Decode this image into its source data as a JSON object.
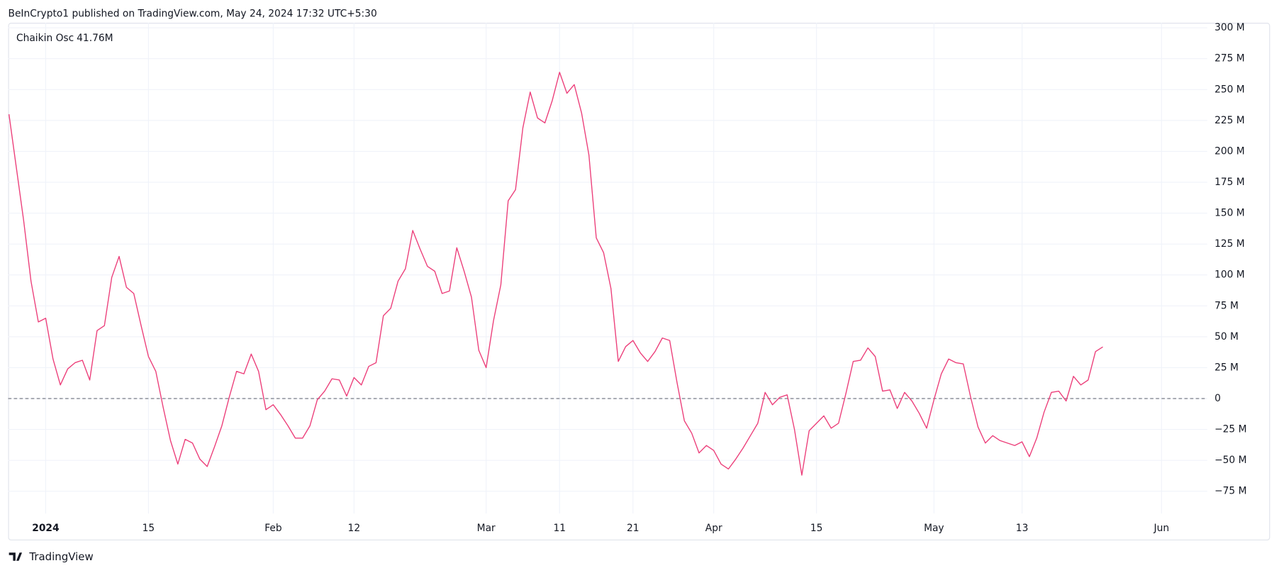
{
  "header": "BeInCrypto1 published on TradingView.com, May 24, 2024 17:32 UTC+5:30",
  "footer": "TradingView",
  "chart_data": {
    "type": "line",
    "series_label": "Chaikin Osc",
    "legend_value_label": "41.76M",
    "categories": [
      null,
      null,
      null,
      null,
      null,
      "2024",
      null,
      null,
      null,
      null,
      null,
      null,
      null,
      null,
      null,
      null,
      null,
      null,
      null,
      "15",
      null,
      null,
      null,
      null,
      null,
      null,
      null,
      null,
      null,
      null,
      null,
      null,
      null,
      null,
      null,
      null,
      "Feb",
      null,
      null,
      null,
      null,
      null,
      null,
      null,
      null,
      null,
      null,
      "12",
      null,
      null,
      null,
      null,
      null,
      null,
      null,
      null,
      null,
      null,
      null,
      null,
      null,
      null,
      null,
      null,
      null,
      "Mar",
      null,
      null,
      null,
      null,
      null,
      null,
      null,
      null,
      null,
      "11",
      null,
      null,
      null,
      null,
      null,
      null,
      null,
      null,
      null,
      "21",
      null,
      null,
      null,
      null,
      null,
      null,
      null,
      null,
      null,
      null,
      "Apr",
      null,
      null,
      null,
      null,
      null,
      null,
      null,
      null,
      null,
      null,
      null,
      null,
      null,
      "15",
      null,
      null,
      null,
      null,
      null,
      null,
      null,
      null,
      null,
      null,
      null,
      null,
      null,
      null,
      null,
      "May",
      null,
      null,
      null,
      null,
      null,
      null,
      null,
      null,
      null,
      null,
      null,
      "13",
      null,
      null,
      null,
      null,
      null,
      null,
      null,
      null,
      null,
      null,
      null,
      null,
      null,
      null,
      null,
      null,
      null,
      null,
      "Jun",
      null,
      null,
      null,
      null,
      null,
      null
    ],
    "series": [
      {
        "name": "Chaikin Osc",
        "color": "#ec3f7a",
        "values": [
          230,
          187,
          144,
          95,
          62,
          65,
          32,
          11,
          24,
          29,
          31,
          15,
          55,
          59,
          98,
          115,
          90,
          85,
          59,
          34,
          22,
          -7,
          -34,
          -53,
          -33,
          -36,
          -49,
          -55,
          -39,
          -22,
          1,
          22,
          20,
          36,
          22,
          -9,
          -5,
          -13,
          -22,
          -32,
          -32,
          -22,
          -1,
          6,
          16,
          15,
          2,
          17,
          11,
          26,
          29,
          67,
          73,
          95,
          105,
          136,
          121,
          107,
          103,
          85,
          87,
          122,
          103,
          82,
          39,
          25,
          63,
          92,
          160,
          169,
          219,
          248,
          227,
          223,
          241,
          264,
          247,
          254,
          231,
          197,
          130,
          118,
          89,
          30,
          42,
          47,
          37,
          30,
          38,
          49,
          47,
          13,
          -18,
          -28,
          -44,
          -38,
          -42,
          -53,
          -57,
          -49,
          -40,
          -30,
          -20,
          5,
          -5,
          1,
          3,
          -25,
          -62,
          -26,
          -20,
          -14,
          -24,
          -20,
          4,
          30,
          31,
          41,
          34,
          6,
          7,
          -8,
          5,
          -2,
          -12,
          -24,
          -1,
          20,
          32,
          29,
          28,
          1,
          -23,
          -36,
          -30,
          -34,
          -36,
          -38,
          -35,
          -47,
          -32,
          -11,
          5,
          6,
          -2,
          18,
          11,
          15,
          38,
          41.76,
          null,
          null,
          null,
          null,
          null,
          null,
          null,
          null,
          null,
          null,
          null,
          null,
          null,
          null
        ]
      }
    ],
    "ylim": [
      -93,
      304
    ],
    "yticks": [
      {
        "value": -75,
        "label": "−75 M"
      },
      {
        "value": -50,
        "label": "−50 M"
      },
      {
        "value": -25,
        "label": "−25 M"
      },
      0,
      {
        "value": 25,
        "label": "25 M"
      },
      {
        "value": 50,
        "label": "50 M"
      },
      {
        "value": 75,
        "label": "75 M"
      },
      {
        "value": 100,
        "label": "100 M"
      },
      {
        "value": 125,
        "label": "125 M"
      },
      {
        "value": 150,
        "label": "150 M"
      },
      {
        "value": 175,
        "label": "175 M"
      },
      {
        "value": 200,
        "label": "200 M"
      },
      {
        "value": 225,
        "label": "225 M"
      },
      {
        "value": 250,
        "label": "250 M"
      },
      {
        "value": 275,
        "label": "275 M"
      },
      {
        "value": 300,
        "label": "300 M"
      }
    ],
    "grid": true,
    "zero_line": true
  }
}
